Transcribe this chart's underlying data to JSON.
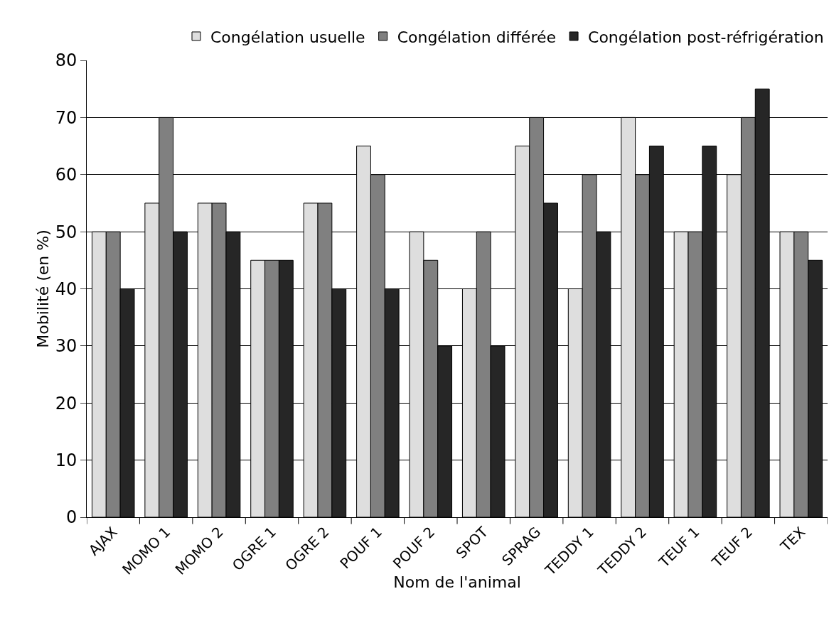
{
  "chart_data": {
    "type": "bar",
    "xlabel": "Nom de l'animal",
    "ylabel": "Mobilité (en %)",
    "categories": [
      "AJAX",
      "MOMO 1",
      "MOMO 2",
      "OGRE 1",
      "OGRE 2",
      "POUF 1",
      "POUF 2",
      "SPOT",
      "SPRAG",
      "TEDDY 1",
      "TEDDY 2",
      "TEUF 1",
      "TEUF 2",
      "TEX"
    ],
    "series": [
      {
        "name": "Congélation usuelle",
        "color": "#dedede",
        "values": [
          50,
          55,
          55,
          45,
          55,
          65,
          50,
          40,
          65,
          40,
          70,
          50,
          60,
          50
        ]
      },
      {
        "name": "Congélation différée",
        "color": "#808080",
        "values": [
          50,
          70,
          55,
          45,
          55,
          60,
          45,
          50,
          70,
          60,
          60,
          50,
          70,
          50
        ]
      },
      {
        "name": "Congélation post-réfrigération",
        "color": "#262626",
        "values": [
          40,
          50,
          50,
          45,
          40,
          40,
          30,
          30,
          55,
          50,
          65,
          65,
          75,
          45
        ]
      }
    ],
    "ylim": [
      0,
      80
    ],
    "yticks": [
      0,
      10,
      20,
      30,
      40,
      50,
      60,
      70,
      80
    ],
    "grid": "y",
    "legend": "top"
  }
}
